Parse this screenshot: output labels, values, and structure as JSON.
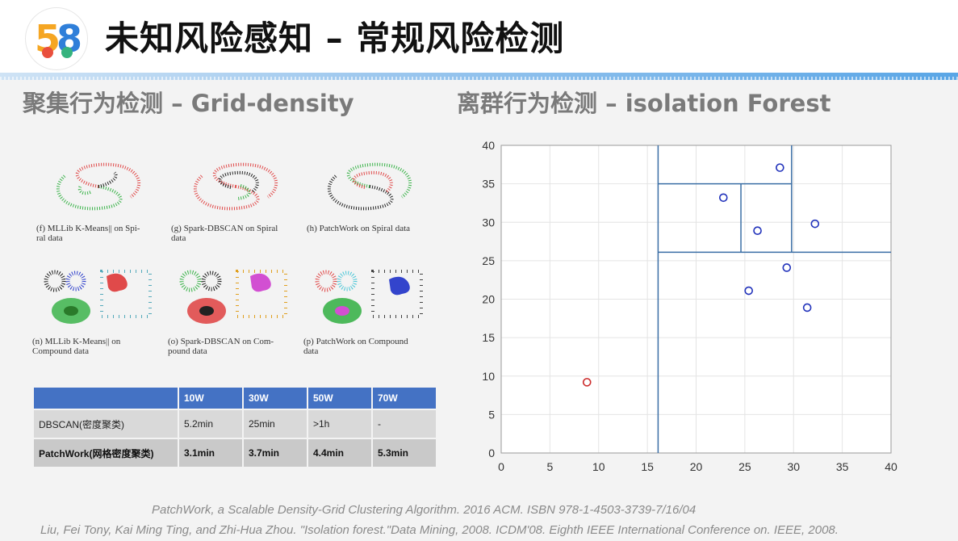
{
  "header": {
    "logo_digit_1": "5",
    "logo_digit_2": "8",
    "title": "未知风险感知 – 常规风险检测"
  },
  "left": {
    "subtitle": "聚集行为检测  – Grid-density",
    "figures": [
      {
        "caption_line1": "(f) MLLib K-Means|| on Spi-",
        "caption_line2": "ral data"
      },
      {
        "caption_line1": "(g) Spark-DBSCAN on Spiral",
        "caption_line2": "data"
      },
      {
        "caption_line1": "(h) PatchWork on Spiral data",
        "caption_line2": ""
      },
      {
        "caption_line1": "(n)  MLLib  K-Means||  on",
        "caption_line2": "Compound data"
      },
      {
        "caption_line1": "(o) Spark-DBSCAN on Com-",
        "caption_line2": "pound data"
      },
      {
        "caption_line1": "(p) PatchWork on Compound",
        "caption_line2": "data"
      }
    ],
    "table": {
      "headers": [
        "",
        "10W",
        "30W",
        "50W",
        "70W"
      ],
      "rows": [
        [
          "DBSCAN(密度聚类)",
          "5.2min",
          "25min",
          ">1h",
          "-"
        ],
        [
          "PatchWork(网格密度聚类)",
          "3.1min",
          "3.7min",
          "4.4min",
          "5.3min"
        ]
      ]
    }
  },
  "right": {
    "subtitle": "离群行为检测  – isolation Forest"
  },
  "chart_data": {
    "type": "scatter",
    "title": "",
    "xlabel": "",
    "ylabel": "",
    "xlim": [
      0,
      40
    ],
    "ylim": [
      0,
      40
    ],
    "x_ticks": [
      "0",
      "5",
      "10",
      "15",
      "20",
      "25",
      "30",
      "35",
      "40"
    ],
    "y_ticks": [
      "0",
      "5",
      "10",
      "15",
      "20",
      "25",
      "30",
      "35",
      "40"
    ],
    "grid": true,
    "series": [
      {
        "color": "#cc2b2b",
        "points": [
          [
            8.8,
            9.2
          ]
        ]
      },
      {
        "color": "#2233bb",
        "points": [
          [
            22.8,
            33.2
          ],
          [
            28.6,
            37.1
          ],
          [
            26.3,
            28.9
          ],
          [
            32.2,
            29.8
          ],
          [
            29.3,
            24.1
          ],
          [
            25.4,
            21.1
          ],
          [
            31.4,
            18.9
          ]
        ]
      }
    ],
    "partition_lines": [
      {
        "orientation": "vertical",
        "x": 16.1,
        "y_from": 0,
        "y_to": 40
      },
      {
        "orientation": "horizontal",
        "y": 26.1,
        "x_from": 16.1,
        "x_to": 40
      },
      {
        "orientation": "vertical",
        "x": 29.8,
        "y_from": 26.1,
        "y_to": 40
      },
      {
        "orientation": "horizontal",
        "y": 35,
        "x_from": 16.1,
        "x_to": 29.8
      },
      {
        "orientation": "vertical",
        "x": 24.6,
        "y_from": 26.1,
        "y_to": 35
      }
    ],
    "partition_color": "#3a6ea5"
  },
  "references": [
    "PatchWork, a Scalable Density-Grid Clustering Algorithm. 2016 ACM. ISBN 978-1-4503-3739-7/16/04",
    "Liu, Fei Tony, Kai Ming Ting, and Zhi-Hua Zhou. \"Isolation forest.\"Data Mining, 2008. ICDM'08. Eighth IEEE International Conference on. IEEE, 2008."
  ]
}
